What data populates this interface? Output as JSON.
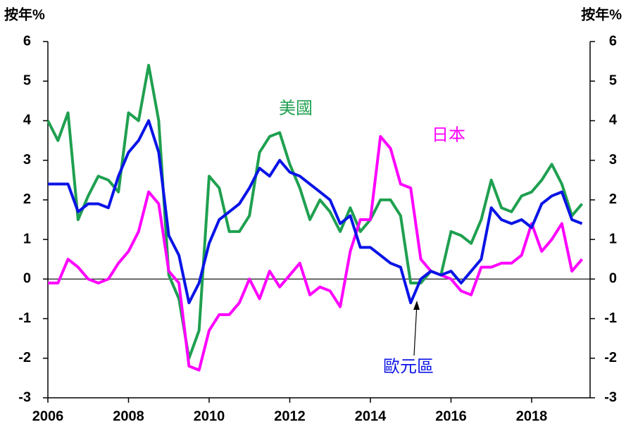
{
  "chart_data": {
    "type": "line",
    "y_label": "按年%",
    "y2_label": "按年%",
    "x": [
      2006.0,
      2006.25,
      2006.5,
      2006.75,
      2007.0,
      2007.25,
      2007.5,
      2007.75,
      2008.0,
      2008.25,
      2008.5,
      2008.75,
      2009.0,
      2009.25,
      2009.5,
      2009.75,
      2010.0,
      2010.25,
      2010.5,
      2010.75,
      2011.0,
      2011.25,
      2011.5,
      2011.75,
      2012.0,
      2012.25,
      2012.5,
      2012.75,
      2013.0,
      2013.25,
      2013.5,
      2013.75,
      2014.0,
      2014.25,
      2014.5,
      2014.75,
      2015.0,
      2015.25,
      2015.5,
      2015.75,
      2016.0,
      2016.25,
      2016.5,
      2016.75,
      2017.0,
      2017.25,
      2017.5,
      2017.75,
      2018.0,
      2018.25,
      2018.5,
      2018.75,
      2019.0,
      2019.25
    ],
    "series": [
      {
        "name": "美國",
        "color": "#1fa050",
        "values": [
          4.0,
          3.5,
          4.2,
          1.5,
          2.1,
          2.6,
          2.5,
          2.2,
          4.2,
          4.0,
          5.4,
          4.0,
          0.1,
          -0.5,
          -2.0,
          -1.3,
          2.6,
          2.3,
          1.2,
          1.2,
          1.6,
          3.2,
          3.6,
          3.7,
          2.9,
          2.3,
          1.5,
          2.0,
          1.7,
          1.2,
          1.8,
          1.2,
          1.5,
          2.0,
          2.0,
          1.6,
          -0.1,
          -0.1,
          0.2,
          0.1,
          1.2,
          1.1,
          0.9,
          1.5,
          2.5,
          1.8,
          1.7,
          2.1,
          2.2,
          2.5,
          2.9,
          2.4,
          1.6,
          1.9
        ]
      },
      {
        "name": "日本",
        "color": "#ff00ff",
        "values": [
          -0.1,
          -0.1,
          0.5,
          0.3,
          0.0,
          -0.1,
          0.0,
          0.4,
          0.7,
          1.2,
          2.2,
          1.9,
          0.2,
          -0.1,
          -2.2,
          -2.3,
          -1.3,
          -0.9,
          -0.9,
          -0.6,
          0.0,
          -0.5,
          0.2,
          -0.2,
          0.1,
          0.4,
          -0.4,
          -0.2,
          -0.3,
          -0.7,
          0.7,
          1.5,
          1.5,
          3.6,
          3.3,
          2.4,
          2.3,
          0.5,
          0.2,
          0.1,
          0.0,
          -0.3,
          -0.4,
          0.3,
          0.3,
          0.4,
          0.4,
          0.6,
          1.4,
          0.7,
          1.0,
          1.4,
          0.2,
          0.5
        ]
      },
      {
        "name": "歐元區",
        "color": "#0a14e6",
        "values": [
          2.4,
          2.4,
          2.4,
          1.7,
          1.9,
          1.9,
          1.8,
          2.6,
          3.2,
          3.5,
          4.0,
          3.2,
          1.1,
          0.6,
          -0.6,
          -0.1,
          0.9,
          1.5,
          1.7,
          1.9,
          2.3,
          2.8,
          2.6,
          3.0,
          2.7,
          2.6,
          2.4,
          2.2,
          2.0,
          1.4,
          1.6,
          0.8,
          0.8,
          0.6,
          0.4,
          0.3,
          -0.6,
          0.0,
          0.2,
          0.1,
          0.2,
          -0.1,
          0.2,
          0.5,
          1.8,
          1.5,
          1.4,
          1.5,
          1.3,
          1.9,
          2.1,
          2.2,
          1.5,
          1.4
        ]
      }
    ],
    "xlim": [
      2006,
      2019.45
    ],
    "xticks": [
      2006,
      2008,
      2010,
      2012,
      2014,
      2016,
      2018
    ],
    "ylim": [
      -3,
      6
    ],
    "yticks": [
      -3,
      -2,
      -1,
      0,
      1,
      2,
      3,
      4,
      5,
      6
    ],
    "y2lim": [
      -3,
      6
    ],
    "y2ticks": [
      -3,
      -2,
      -1,
      0,
      1,
      2,
      3,
      4,
      5,
      6
    ]
  }
}
